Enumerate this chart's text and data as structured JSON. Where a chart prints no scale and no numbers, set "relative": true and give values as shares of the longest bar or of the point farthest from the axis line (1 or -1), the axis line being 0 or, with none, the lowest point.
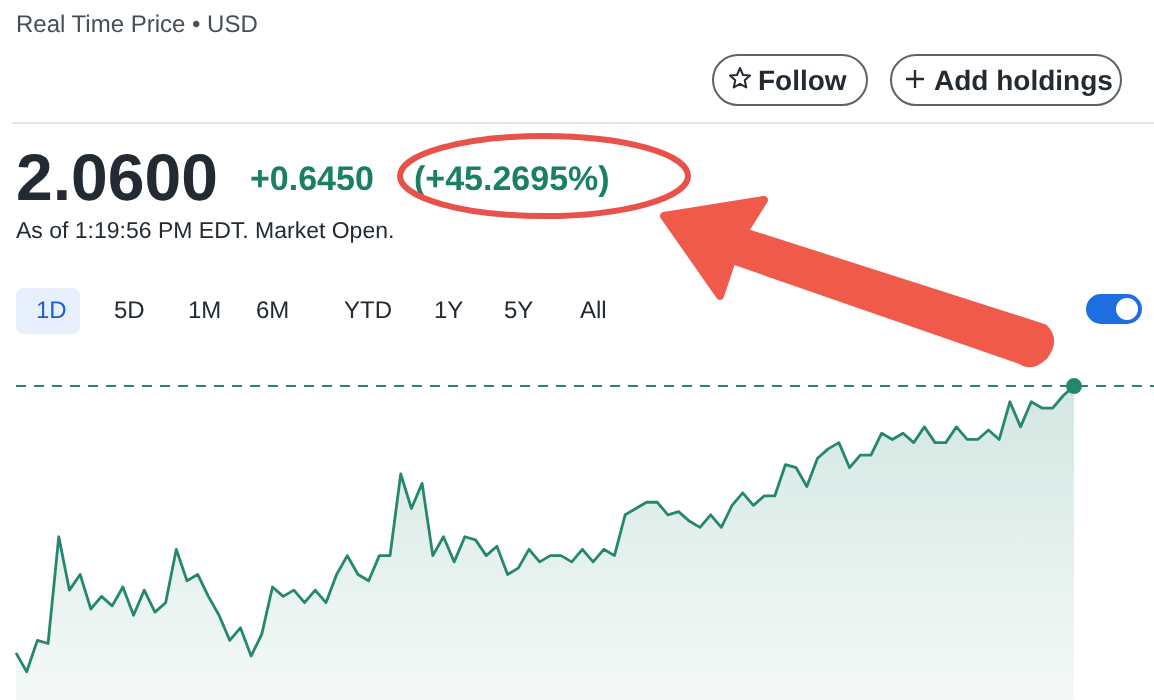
{
  "chart_data": {
    "type": "area",
    "relative": true,
    "categories": [
      null,
      null,
      null,
      null,
      null,
      null,
      null,
      null,
      null,
      null,
      null,
      null,
      null,
      null,
      null,
      null,
      null,
      null,
      null,
      null,
      null,
      null,
      null,
      null,
      null,
      null,
      null,
      null,
      null,
      null,
      null,
      null,
      null,
      null,
      null,
      null,
      null,
      null,
      null,
      null,
      null,
      null,
      null,
      null,
      null,
      null,
      null,
      null,
      null,
      null,
      null,
      null,
      null,
      null,
      null,
      null,
      null,
      null,
      null,
      null,
      null,
      null,
      null,
      null,
      null,
      null,
      null,
      null,
      null,
      null,
      null,
      null,
      null,
      null,
      null,
      null,
      null,
      null,
      null,
      null,
      null,
      null,
      null,
      null,
      null,
      null,
      null,
      null,
      null,
      null,
      null,
      null,
      null,
      null,
      null,
      null,
      null,
      null,
      null,
      null
    ],
    "series": [
      {
        "color": "#25876d",
        "values": [
          0.15,
          0.09,
          0.19,
          0.18,
          0.52,
          0.35,
          0.4,
          0.29,
          0.33,
          0.3,
          0.36,
          0.27,
          0.35,
          0.28,
          0.31,
          0.48,
          0.38,
          0.4,
          0.33,
          0.27,
          0.19,
          0.23,
          0.14,
          0.21,
          0.36,
          0.33,
          0.35,
          0.31,
          0.35,
          0.31,
          0.4,
          0.46,
          0.4,
          0.38,
          0.46,
          0.46,
          0.72,
          0.61,
          0.69,
          0.46,
          0.52,
          0.44,
          0.52,
          0.51,
          0.46,
          0.49,
          0.4,
          0.42,
          0.48,
          0.44,
          0.46,
          0.46,
          0.44,
          0.48,
          0.44,
          0.48,
          0.46,
          0.59,
          0.61,
          0.63,
          0.63,
          0.59,
          0.6,
          0.57,
          0.55,
          0.59,
          0.55,
          0.62,
          0.66,
          0.62,
          0.65,
          0.65,
          0.75,
          0.74,
          0.68,
          0.77,
          0.8,
          0.82,
          0.74,
          0.78,
          0.78,
          0.85,
          0.83,
          0.85,
          0.82,
          0.87,
          0.82,
          0.82,
          0.87,
          0.83,
          0.83,
          0.86,
          0.83,
          0.95,
          0.87,
          0.95,
          0.93,
          0.93,
          0.97,
          1
        ]
      }
    ],
    "ref_lines": [
      {
        "axis": "y",
        "value": 1,
        "color": "#25876d",
        "line_style": "dashed"
      }
    ],
    "grid": false,
    "legend": false,
    "annotations": [
      "Real Time Price • USD",
      "Follow",
      "Add holdings",
      "2.0600",
      "+0.6450",
      "(+45.2695%)",
      "As of 1:19:56 PM EDT. Market Open.",
      "1D",
      "5D",
      "1M",
      "6M",
      "YTD",
      "1Y",
      "5Y",
      "All"
    ]
  }
}
